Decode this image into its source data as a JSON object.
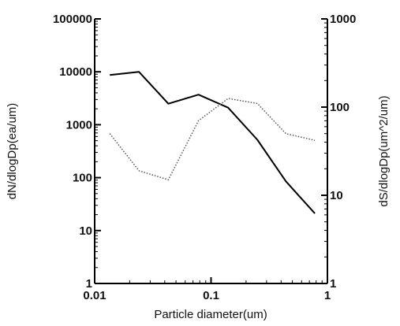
{
  "chart_data": {
    "type": "line",
    "xlabel": "Particle diameter(um)",
    "ylabel": "dN/dlogDp(ea/um)",
    "y2label": "dS/dlogDp(um^2/um)",
    "xscale": "log",
    "yscale": "log",
    "y2scale": "log",
    "xlim": [
      0.01,
      1
    ],
    "ylim": [
      1,
      100000
    ],
    "y2lim": [
      1,
      1000
    ],
    "xticks": [
      0.01,
      0.1,
      1
    ],
    "xtick_labels": [
      "0.01",
      "0.1",
      "1"
    ],
    "yticks": [
      1,
      10,
      100,
      1000,
      10000,
      100000
    ],
    "ytick_labels": [
      "1",
      "10",
      "100",
      "1000",
      "10000",
      "100000"
    ],
    "y2ticks": [
      1,
      10,
      100,
      1000
    ],
    "y2tick_labels": [
      "1",
      "10",
      "100",
      "1000"
    ],
    "grid": false,
    "series": [
      {
        "axis": "left",
        "style": "solid",
        "color": "#000000",
        "x": [
          0.0135,
          0.024,
          0.043,
          0.078,
          0.14,
          0.25,
          0.44,
          0.78
        ],
        "y": [
          8700,
          10000,
          2500,
          3700,
          2100,
          520,
          85,
          21
        ]
      },
      {
        "axis": "right",
        "style": "dotted",
        "color": "#555555",
        "x": [
          0.0135,
          0.024,
          0.043,
          0.078,
          0.14,
          0.25,
          0.44,
          0.78
        ],
        "y": [
          50,
          19,
          15,
          70,
          125,
          110,
          50,
          42
        ]
      }
    ]
  }
}
